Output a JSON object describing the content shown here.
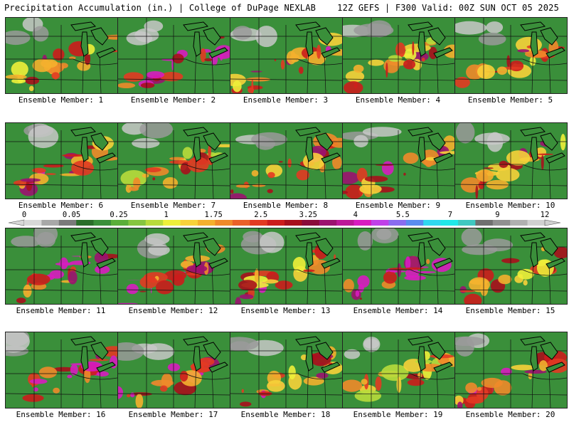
{
  "header": {
    "left": "Precipitation Accumulation (in.) | College of DuPage NEXLAB",
    "right": "12Z GEFS | F300 Valid: 00Z SUN OCT 05 2025"
  },
  "colorbar": {
    "tick_labels": [
      "0",
      "0.05",
      "0.25",
      "1",
      "1.75",
      "2.5",
      "3.25",
      "4",
      "5.5",
      "7",
      "9",
      "12"
    ],
    "colors": [
      "#d8d8d8",
      "#a8a8a8",
      "#7a7a7a",
      "#2a6e2a",
      "#3a8f3a",
      "#5aae3a",
      "#86c540",
      "#b8db3c",
      "#eef03a",
      "#f7d23a",
      "#f4b02e",
      "#f08a2a",
      "#ea6028",
      "#e23a22",
      "#cc1c1c",
      "#a8101c",
      "#8a0c3a",
      "#9c1270",
      "#bc1898",
      "#d81cc0",
      "#c040e8",
      "#8a6cf0",
      "#5a8cf0",
      "#30d8f0",
      "#20e8e8",
      "#40c8c0",
      "#707070",
      "#909090",
      "#b0b0b0",
      "#d0d0d0"
    ]
  },
  "panels": [
    {
      "label": "Ensemble Member: 1",
      "intensity": 0.42
    },
    {
      "label": "Ensemble Member: 2",
      "intensity": 0.72
    },
    {
      "label": "Ensemble Member: 3",
      "intensity": 0.45
    },
    {
      "label": "Ensemble Member: 4",
      "intensity": 0.4
    },
    {
      "label": "Ensemble Member: 5",
      "intensity": 0.48
    },
    {
      "label": "Ensemble Member: 6",
      "intensity": 0.5
    },
    {
      "label": "Ensemble Member: 7",
      "intensity": 0.35
    },
    {
      "label": "Ensemble Member: 8",
      "intensity": 0.55
    },
    {
      "label": "Ensemble Member: 9",
      "intensity": 0.52
    },
    {
      "label": "Ensemble Member: 10",
      "intensity": 0.45
    },
    {
      "label": "Ensemble Member: 11",
      "intensity": 0.62
    },
    {
      "label": "Ensemble Member: 12",
      "intensity": 0.6
    },
    {
      "label": "Ensemble Member: 13",
      "intensity": 0.48
    },
    {
      "label": "Ensemble Member: 14",
      "intensity": 0.68
    },
    {
      "label": "Ensemble Member: 15",
      "intensity": 0.42
    },
    {
      "label": "Ensemble Member: 16",
      "intensity": 0.7
    },
    {
      "label": "Ensemble Member: 17",
      "intensity": 0.58
    },
    {
      "label": "Ensemble Member: 18",
      "intensity": 0.45
    },
    {
      "label": "Ensemble Member: 19",
      "intensity": 0.36
    },
    {
      "label": "Ensemble Member: 20",
      "intensity": 0.55
    }
  ]
}
